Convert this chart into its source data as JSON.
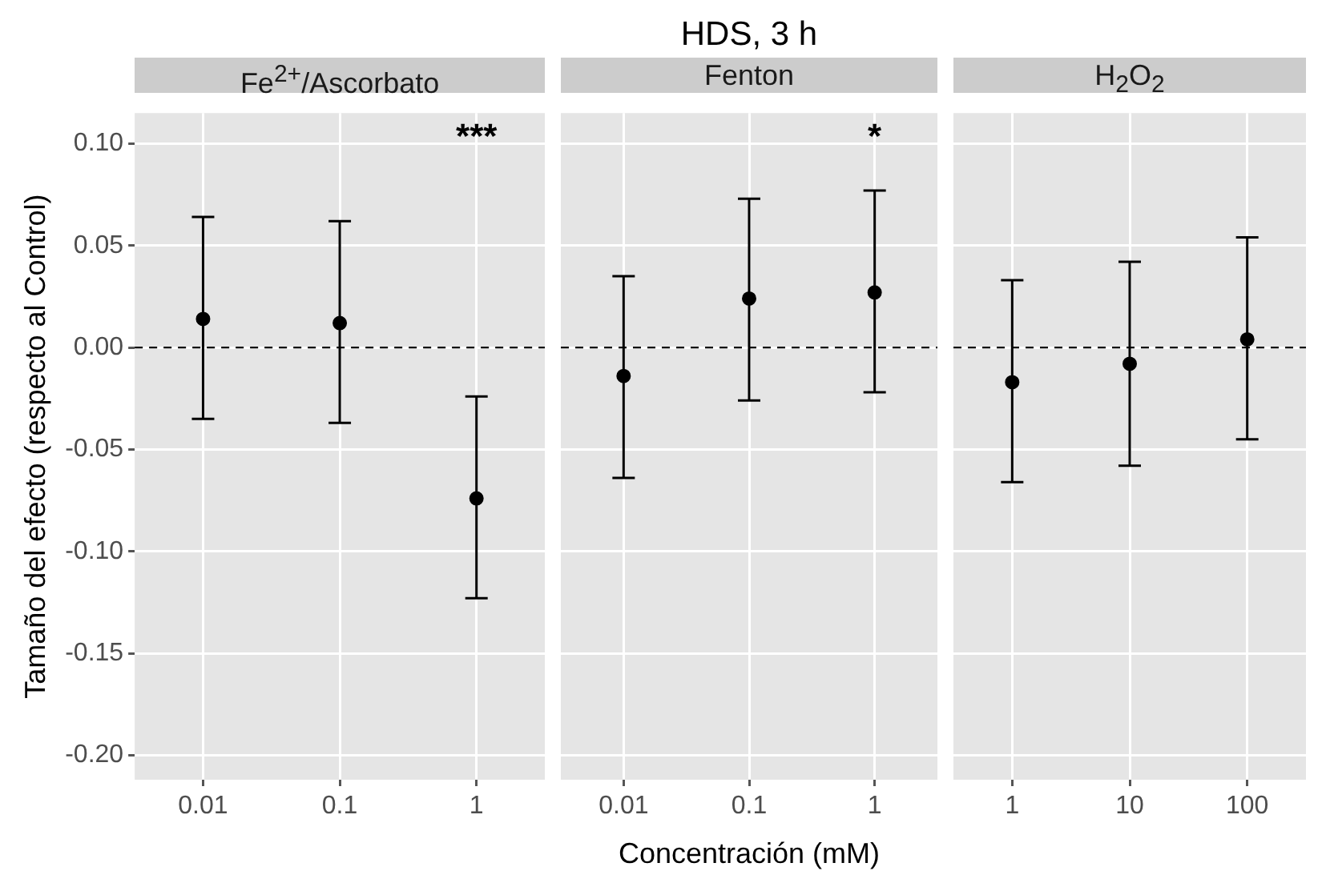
{
  "chart_data": [
    {
      "type": "scatter",
      "subtitle": "Fe$^{2+}$/Ascorbato",
      "ylabel": "Tamaño del efecto (respecto al Control)",
      "categories": [
        "0.01",
        "0.1",
        "1"
      ],
      "values": [
        0.014,
        0.012,
        -0.074
      ],
      "errors": [
        [
          -0.035,
          0.064
        ],
        [
          -0.037,
          0.062
        ],
        [
          -0.123,
          -0.024
        ]
      ],
      "color": "#000000",
      "marker": "circle",
      "ylim": [
        -0.212,
        0.115
      ],
      "yticks": [
        {
          "value": -0.2,
          "label": "-0.20"
        },
        {
          "value": -0.15,
          "label": "-0.15"
        },
        {
          "value": -0.1,
          "label": "-0.10"
        },
        {
          "value": -0.05,
          "label": "-0.05"
        },
        {
          "value": 0,
          "label": "0.00"
        },
        {
          "value": 0.05,
          "label": "0.05"
        },
        {
          "value": 0.1,
          "label": "0.10"
        }
      ],
      "grid": true,
      "ref_lines": [
        {
          "axis": "y",
          "value": 0,
          "line_style": "dashed",
          "color": "#000000"
        }
      ],
      "annotations": [
        "***"
      ]
    },
    {
      "type": "scatter",
      "title": "HDS, 3 h",
      "subtitle": "Fenton",
      "xlabel": "Concentración (mM)",
      "categories": [
        "0.01",
        "0.1",
        "1"
      ],
      "values": [
        -0.014,
        0.024,
        0.027
      ],
      "errors": [
        [
          -0.064,
          0.035
        ],
        [
          -0.026,
          0.073
        ],
        [
          -0.022,
          0.077
        ]
      ],
      "color": "#000000",
      "marker": "circle",
      "ylim": [
        -0.212,
        0.115
      ],
      "yticks": [
        -0.2,
        -0.15,
        -0.1,
        -0.05,
        0,
        0.05,
        0.1
      ],
      "grid": true,
      "tick_labels": "x",
      "ref_lines": [
        {
          "axis": "y",
          "value": 0,
          "line_style": "dashed",
          "color": "#000000"
        }
      ],
      "annotations": [
        "*"
      ]
    },
    {
      "type": "scatter",
      "subtitle": "H$_{2}$O$_{2}$",
      "categories": [
        "1",
        "10",
        "100"
      ],
      "values": [
        -0.017,
        -0.008,
        0.004
      ],
      "errors": [
        [
          -0.066,
          0.033
        ],
        [
          -0.058,
          0.042
        ],
        [
          -0.045,
          0.054
        ]
      ],
      "color": "#000000",
      "marker": "circle",
      "ylim": [
        -0.212,
        0.115
      ],
      "yticks": [
        -0.2,
        -0.15,
        -0.1,
        -0.05,
        0,
        0.05,
        0.1
      ],
      "grid": true,
      "tick_labels": "x",
      "ref_lines": [
        {
          "axis": "y",
          "value": 0,
          "line_style": "dashed",
          "color": "#000000"
        }
      ]
    }
  ]
}
